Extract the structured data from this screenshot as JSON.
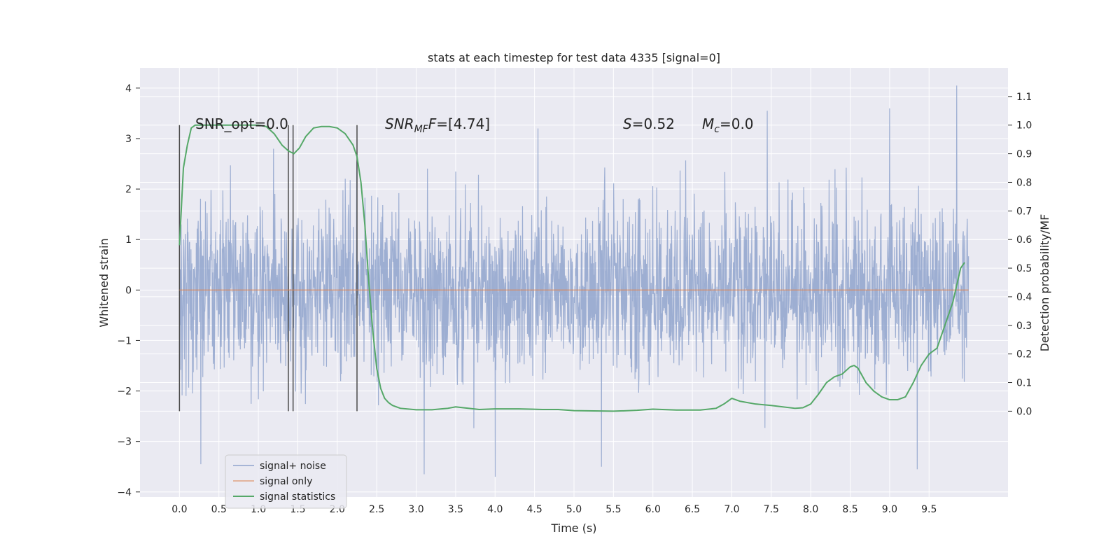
{
  "chart_data": {
    "type": "line",
    "title": "stats at each timestep for test data 4335 [signal=0]",
    "xlabel": "Time (s)",
    "ylabel": "Whitened strain",
    "y2label": "Detection probability/MF",
    "xlim": [
      -0.5,
      10.5
    ],
    "ylim": [
      -4.1,
      4.4
    ],
    "y2lim": [
      -0.3,
      1.2
    ],
    "xticks": [
      0.0,
      0.5,
      1.0,
      1.5,
      2.0,
      2.5,
      3.0,
      3.5,
      4.0,
      4.5,
      5.0,
      5.5,
      6.0,
      6.5,
      7.0,
      7.5,
      8.0,
      8.5,
      9.0,
      9.5
    ],
    "xtick_labels": [
      "0.0",
      "0.5",
      "1.0",
      "1.5",
      "2.0",
      "2.5",
      "3.0",
      "3.5",
      "4.0",
      "4.5",
      "5.0",
      "5.5",
      "6.0",
      "6.5",
      "7.0",
      "7.5",
      "8.0",
      "8.5",
      "9.0",
      "9.5"
    ],
    "yticks": [
      4,
      3,
      2,
      1,
      0,
      -1,
      -2,
      -3,
      -4
    ],
    "ytick_labels": [
      "4",
      "3",
      "2",
      "1",
      "0",
      "−1",
      "−2",
      "−3",
      "−4"
    ],
    "y2ticks": [
      1.1,
      1.0,
      0.9,
      0.8,
      0.7,
      0.6,
      0.5,
      0.4,
      0.3,
      0.2,
      0.1,
      0.0
    ],
    "y2tick_labels": [
      "1.1",
      "1.0",
      "0.9",
      "0.8",
      "0.7",
      "0.6",
      "0.5",
      "0.4",
      "0.3",
      "0.2",
      "0.1",
      "0.0"
    ],
    "grid": true,
    "legend_position": "bottom-left",
    "annotations": {
      "snr_opt": "SNR_opt=0.0",
      "snr_mf_prefix": "SNR",
      "snr_mf_sub": "MF",
      "snr_mf_value": "=[4.74]",
      "s_var": "S",
      "s_value": "=0.52",
      "mc_var": "M",
      "mc_sub": "c",
      "mc_value": "=0.0"
    },
    "vertical_markers": [
      0.0,
      1.38,
      1.44,
      2.25
    ],
    "series": [
      {
        "name": "signal+ noise",
        "color": "#8fa3cc",
        "kind": "noise",
        "t_range": [
          0.0,
          10.0
        ],
        "sigma": 0.85,
        "notable_peaks": [
          {
            "t": 9.85,
            "v": 4.05
          },
          {
            "t": 9.0,
            "v": 3.6
          },
          {
            "t": 7.45,
            "v": 3.55
          },
          {
            "t": 3.1,
            "v": -3.65
          },
          {
            "t": 4.0,
            "v": -3.7
          },
          {
            "t": 5.35,
            "v": -3.5
          },
          {
            "t": 9.35,
            "v": -3.55
          },
          {
            "t": 0.27,
            "v": -3.45
          }
        ]
      },
      {
        "name": "signal only",
        "color": "#dd8452",
        "x": [
          0.0,
          10.0
        ],
        "y": [
          0.0,
          0.0
        ]
      },
      {
        "name": "signal statistics",
        "color": "#55a868",
        "axis": "right",
        "x": [
          0.0,
          0.05,
          0.1,
          0.15,
          0.2,
          0.3,
          0.5,
          0.8,
          1.0,
          1.1,
          1.2,
          1.3,
          1.38,
          1.45,
          1.52,
          1.6,
          1.7,
          1.8,
          1.9,
          2.0,
          2.1,
          2.2,
          2.25,
          2.3,
          2.35,
          2.4,
          2.45,
          2.5,
          2.55,
          2.6,
          2.65,
          2.7,
          2.8,
          3.0,
          3.2,
          3.4,
          3.5,
          3.6,
          3.8,
          4.0,
          4.3,
          4.6,
          4.8,
          5.0,
          5.5,
          5.8,
          6.0,
          6.3,
          6.6,
          6.8,
          6.9,
          7.0,
          7.1,
          7.3,
          7.5,
          7.8,
          7.9,
          8.0,
          8.1,
          8.2,
          8.3,
          8.4,
          8.5,
          8.55,
          8.6,
          8.7,
          8.8,
          8.9,
          9.0,
          9.1,
          9.2,
          9.3,
          9.4,
          9.5,
          9.6,
          9.7,
          9.8,
          9.9,
          9.95
        ],
        "y": [
          0.58,
          0.85,
          0.93,
          0.99,
          1.0,
          1.0,
          1.0,
          1.0,
          1.0,
          0.995,
          0.97,
          0.93,
          0.91,
          0.9,
          0.92,
          0.96,
          0.99,
          0.995,
          0.995,
          0.99,
          0.97,
          0.93,
          0.89,
          0.8,
          0.65,
          0.45,
          0.28,
          0.15,
          0.08,
          0.045,
          0.03,
          0.02,
          0.01,
          0.005,
          0.005,
          0.01,
          0.015,
          0.012,
          0.006,
          0.008,
          0.008,
          0.006,
          0.006,
          0.002,
          0.0,
          0.003,
          0.007,
          0.004,
          0.004,
          0.01,
          0.025,
          0.045,
          0.035,
          0.025,
          0.02,
          0.01,
          0.012,
          0.025,
          0.06,
          0.1,
          0.12,
          0.13,
          0.155,
          0.16,
          0.15,
          0.1,
          0.07,
          0.05,
          0.04,
          0.04,
          0.05,
          0.1,
          0.16,
          0.2,
          0.22,
          0.3,
          0.38,
          0.5,
          0.52
        ]
      }
    ]
  }
}
